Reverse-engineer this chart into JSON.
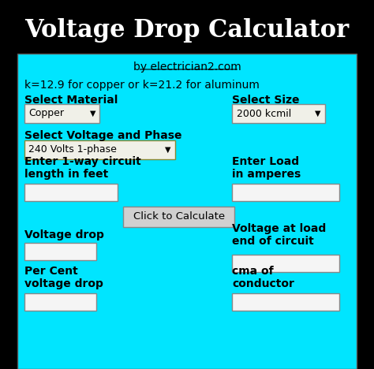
{
  "title": "Voltage Drop Calculator",
  "title_bg": "#000000",
  "title_color": "#ffffff",
  "body_bg": "#00e5ff",
  "by_text": "by electrician2.com",
  "formula_text": "k=12.9 for copper or k=21.2 for aluminum",
  "select_material_label": "Select Material",
  "material_value": "Copper",
  "select_size_label": "Select Size",
  "size_value": "2000 kcmil",
  "select_vp_label": "Select Voltage and Phase",
  "vp_value": "240 Volts 1-phase",
  "length_label": "Enter 1-way circuit\nlength in feet",
  "load_label": "Enter Load\nin amperes",
  "button_text": "Click to Calculate",
  "vdrop_label": "Voltage drop",
  "vload_label": "Voltage at load\nend of circuit",
  "percent_label": "Per Cent\nvoltage drop",
  "cma_label": "cma of\nconductor",
  "input_box_color": "#f5f5f5",
  "dropdown_box_color": "#f0f0e8",
  "button_bg": "#d0d0d0",
  "button_border": "#888888"
}
